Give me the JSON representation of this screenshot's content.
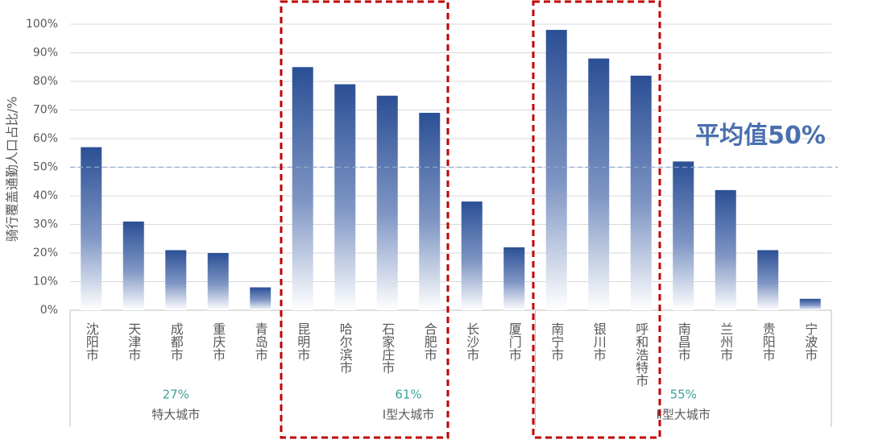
{
  "chart_data": {
    "type": "bar",
    "y_axis_label": "骑行覆盖通勤人口占比/%",
    "ylim": [
      0,
      100
    ],
    "yticks": [
      {
        "value": 0,
        "label": "0%"
      },
      {
        "value": 10,
        "label": "10%"
      },
      {
        "value": 20,
        "label": "20%"
      },
      {
        "value": 30,
        "label": "30%"
      },
      {
        "value": 40,
        "label": "40%"
      },
      {
        "value": 50,
        "label": "50%"
      },
      {
        "value": 60,
        "label": "60%"
      },
      {
        "value": 70,
        "label": "70%"
      },
      {
        "value": 80,
        "label": "80%"
      },
      {
        "value": 90,
        "label": "90%"
      },
      {
        "value": 100,
        "label": "100%"
      }
    ],
    "grid": true,
    "color": "#2b4f95",
    "average": {
      "value": 50,
      "label": "平均值50%"
    },
    "groups": [
      {
        "name": "特大城市",
        "share": "27%",
        "categories": [
          "沈阳市",
          "天津市",
          "成都市",
          "重庆市",
          "青岛市"
        ],
        "values": [
          57,
          31,
          21,
          20,
          8
        ]
      },
      {
        "name": "Ⅰ型大城市",
        "share": "61%",
        "categories": [
          "昆明市",
          "哈尔滨市",
          "石家庄市",
          "合肥市",
          "长沙市",
          "厦门市"
        ],
        "values": [
          85,
          79,
          75,
          69,
          38,
          22
        ]
      },
      {
        "name": "Ⅱ型大城市",
        "share": "55%",
        "categories": [
          "南宁市",
          "银川市",
          "呼和浩特市",
          "南昌市",
          "兰州市",
          "贵阳市",
          "宁波市"
        ],
        "values": [
          98,
          88,
          82,
          52,
          42,
          21,
          4
        ]
      }
    ]
  }
}
